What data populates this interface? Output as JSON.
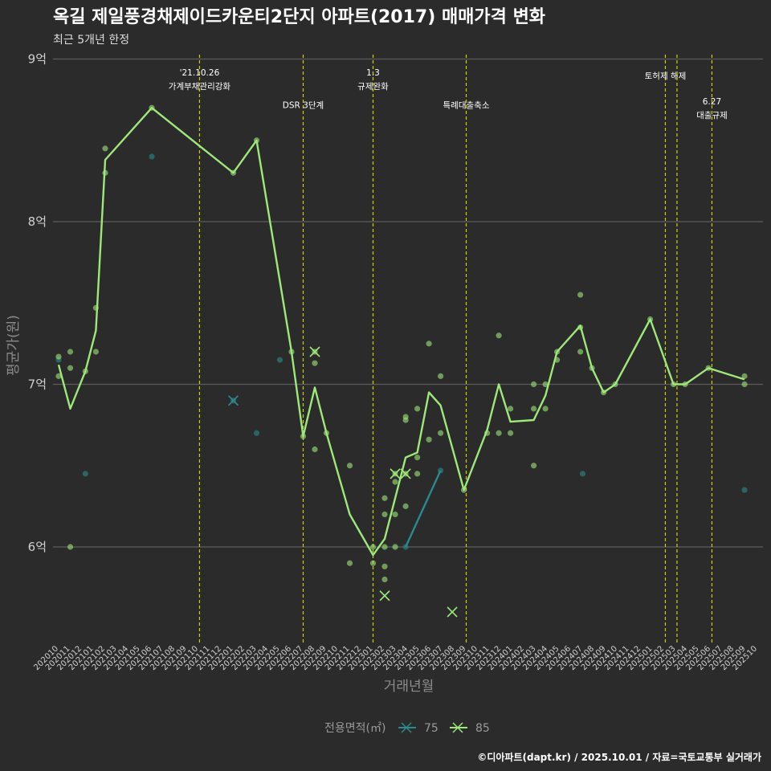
{
  "colors": {
    "background": "#2b2b2b",
    "grid": "#5c5c5c",
    "s75": "#2a8a8c",
    "s85": "#9ee87a",
    "event": "#c8d400"
  },
  "chart_data": {
    "type": "line",
    "title": "옥길 제일풍경채제이드카운티2단지 아파트(2017) 매매가격 변화",
    "subtitle": "최근 5개년 한정",
    "xlabel": "거래년월",
    "ylabel": "평균가(원)",
    "y_range": [
      5.45,
      9.05
    ],
    "y_ticks": [
      {
        "v": 6,
        "label": "6억"
      },
      {
        "v": 7,
        "label": "7억"
      },
      {
        "v": 8,
        "label": "8억"
      },
      {
        "v": 9,
        "label": "9억"
      }
    ],
    "x_ticks": [
      "202010",
      "202011",
      "202012",
      "202101",
      "202102",
      "202103",
      "202104",
      "202105",
      "202106",
      "202107",
      "202108",
      "202109",
      "202110",
      "202111",
      "202112",
      "202201",
      "202202",
      "202203",
      "202204",
      "202205",
      "202206",
      "202207",
      "202208",
      "202209",
      "202210",
      "202211",
      "202212",
      "202301",
      "202302",
      "202303",
      "202304",
      "202305",
      "202306",
      "202307",
      "202308",
      "202309",
      "202310",
      "202311",
      "202312",
      "202401",
      "202402",
      "202403",
      "202404",
      "202405",
      "202406",
      "202407",
      "202408",
      "202409",
      "202410",
      "202411",
      "202412",
      "202501",
      "202502",
      "202503",
      "202504",
      "202505",
      "202506",
      "202507",
      "202508",
      "202509",
      "202510"
    ],
    "series": [
      {
        "name": "75",
        "color": "#2a8a8c",
        "line": [
          [
            29.8,
            6.0
          ],
          [
            32.8,
            6.47
          ]
        ],
        "points": [
          [
            0,
            7.15
          ],
          [
            2.3,
            6.45
          ],
          [
            8,
            8.4
          ],
          [
            15,
            6.9
          ],
          [
            17,
            6.7
          ],
          [
            19,
            7.15
          ],
          [
            29.8,
            6.0
          ],
          [
            32.8,
            6.47
          ],
          [
            45,
            6.45
          ],
          [
            58.9,
            6.35
          ]
        ],
        "cross": [
          [
            15,
            6.9
          ]
        ]
      },
      {
        "name": "85",
        "color": "#9ee87a",
        "line": [
          [
            0,
            7.12
          ],
          [
            1,
            6.85
          ],
          [
            2.3,
            7.08
          ],
          [
            3.2,
            7.33
          ],
          [
            4,
            8.38
          ],
          [
            8,
            8.7
          ],
          [
            15,
            8.3
          ],
          [
            17,
            8.5
          ],
          [
            20,
            7.2
          ],
          [
            21,
            6.68
          ],
          [
            22,
            6.98
          ],
          [
            23,
            6.7
          ],
          [
            25,
            6.2
          ],
          [
            27,
            5.95
          ],
          [
            28,
            6.05
          ],
          [
            29.8,
            6.55
          ],
          [
            30.8,
            6.58
          ],
          [
            31.8,
            6.95
          ],
          [
            32.8,
            6.87
          ],
          [
            34.8,
            6.35
          ],
          [
            36.8,
            6.72
          ],
          [
            37.8,
            7.0
          ],
          [
            38.8,
            6.77
          ],
          [
            40.8,
            6.78
          ],
          [
            41.8,
            6.93
          ],
          [
            42.8,
            7.2
          ],
          [
            44.8,
            7.36
          ],
          [
            45.8,
            7.1
          ],
          [
            46.8,
            6.95
          ],
          [
            47.8,
            7.0
          ],
          [
            50.8,
            7.4
          ],
          [
            52.8,
            7.0
          ],
          [
            53.8,
            7.0
          ],
          [
            55.8,
            7.1
          ],
          [
            58.9,
            7.03
          ]
        ],
        "points": [
          [
            0,
            7.17
          ],
          [
            0,
            7.05
          ],
          [
            1,
            7.2
          ],
          [
            1,
            7.1
          ],
          [
            1,
            6.0
          ],
          [
            2.3,
            7.08
          ],
          [
            3.2,
            7.2
          ],
          [
            3.2,
            7.47
          ],
          [
            4,
            8.45
          ],
          [
            4,
            8.3
          ],
          [
            8,
            8.7
          ],
          [
            15,
            8.3
          ],
          [
            17,
            8.5
          ],
          [
            20,
            7.2
          ],
          [
            21,
            6.68
          ],
          [
            22,
            7.2
          ],
          [
            22,
            7.13
          ],
          [
            22,
            6.6
          ],
          [
            23,
            6.7
          ],
          [
            25,
            6.5
          ],
          [
            25,
            5.9
          ],
          [
            27,
            6.0
          ],
          [
            27,
            5.9
          ],
          [
            28,
            6.3
          ],
          [
            28,
            6.2
          ],
          [
            28,
            6.0
          ],
          [
            28,
            5.88
          ],
          [
            28,
            5.8
          ],
          [
            28.9,
            6.45
          ],
          [
            28.9,
            6.4
          ],
          [
            28.9,
            6.2
          ],
          [
            28.9,
            6.0
          ],
          [
            29.8,
            6.8
          ],
          [
            29.8,
            6.78
          ],
          [
            29.8,
            6.45
          ],
          [
            29.8,
            6.25
          ],
          [
            30.8,
            6.85
          ],
          [
            30.8,
            6.55
          ],
          [
            30.8,
            6.45
          ],
          [
            31.8,
            7.25
          ],
          [
            31.8,
            6.66
          ],
          [
            32.8,
            7.05
          ],
          [
            32.8,
            6.7
          ],
          [
            34.8,
            6.35
          ],
          [
            36.8,
            6.7
          ],
          [
            37.8,
            7.3
          ],
          [
            37.8,
            6.7
          ],
          [
            38.8,
            6.85
          ],
          [
            38.8,
            6.7
          ],
          [
            40.8,
            7.0
          ],
          [
            40.8,
            6.85
          ],
          [
            40.8,
            6.5
          ],
          [
            41.8,
            7.0
          ],
          [
            41.8,
            6.85
          ],
          [
            42.8,
            7.2
          ],
          [
            42.8,
            7.15
          ],
          [
            44.8,
            7.55
          ],
          [
            44.8,
            7.35
          ],
          [
            44.8,
            7.2
          ],
          [
            45.8,
            7.1
          ],
          [
            46.8,
            6.95
          ],
          [
            47.8,
            7.0
          ],
          [
            50.8,
            7.4
          ],
          [
            52.8,
            7.0
          ],
          [
            53.8,
            7.0
          ],
          [
            55.8,
            7.1
          ],
          [
            58.9,
            7.05
          ],
          [
            58.9,
            7.0
          ]
        ],
        "cross": [
          [
            22,
            7.2
          ],
          [
            28,
            5.7
          ],
          [
            28.9,
            6.45
          ],
          [
            29.8,
            6.45
          ],
          [
            33.8,
            5.6
          ]
        ]
      }
    ],
    "events": [
      {
        "x": 12.1,
        "lines": [
          "'21.10.26",
          "가계부채관리강화"
        ],
        "y": 8.9
      },
      {
        "x": 21,
        "lines": [
          "DSR 3단계"
        ],
        "y": 8.7
      },
      {
        "x": 27,
        "lines": [
          "1.3",
          "규제완화"
        ],
        "y": 8.9
      },
      {
        "x": 35,
        "lines": [
          "특례대출축소"
        ],
        "y": 8.7
      },
      {
        "x": 52.1,
        "lines": [
          "토허제 해제"
        ],
        "y": 8.88
      },
      {
        "x": 53.1,
        "lines": [],
        "y": 8.88
      },
      {
        "x": 56.1,
        "lines": [
          "6.27",
          "대출규제"
        ],
        "y": 8.72
      }
    ],
    "legend": {
      "title": "전용면적(㎡)",
      "items": [
        "75",
        "85"
      ]
    }
  },
  "caption": "©디아파트(dapt.kr) / 2025.10.01 / 자료=국토교통부 실거래가"
}
